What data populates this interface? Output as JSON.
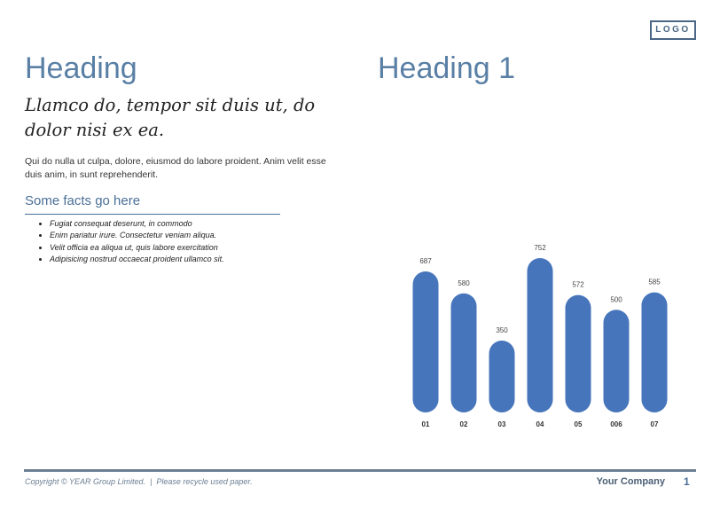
{
  "logo": "LOGO",
  "left": {
    "heading": "Heading",
    "subheading": "Llamco do, tempor sit duis ut, do dolor nisi ex ea.",
    "paragraph": "Qui do nulla ut culpa, dolore, eiusmod do labore proident. Anim velit esse duis anim, in sunt reprehenderit.",
    "facts_title": "Some facts go here",
    "facts": [
      "Fugiat consequat deserunt, in commodo",
      "Enim pariatur irure. Consectetur veniam aliqua.",
      "Velit officia ea aliqua ut, quis labore exercitation",
      "Adipisicing nostrud occaecat proident ullamco sit."
    ]
  },
  "right": {
    "heading": "Heading 1"
  },
  "chart_data": {
    "type": "bar",
    "categories": [
      "01",
      "02",
      "03",
      "04",
      "05",
      "006",
      "07"
    ],
    "values": [
      687,
      580,
      350,
      752,
      572,
      500,
      585
    ],
    "bar_color": "#4675bb",
    "ylim": [
      0,
      752
    ],
    "grid": false
  },
  "footer": {
    "copyright": "Copyright © YEAR Group Limited.  |  Please recycle used paper.",
    "company": "Your Company",
    "page": "1"
  }
}
